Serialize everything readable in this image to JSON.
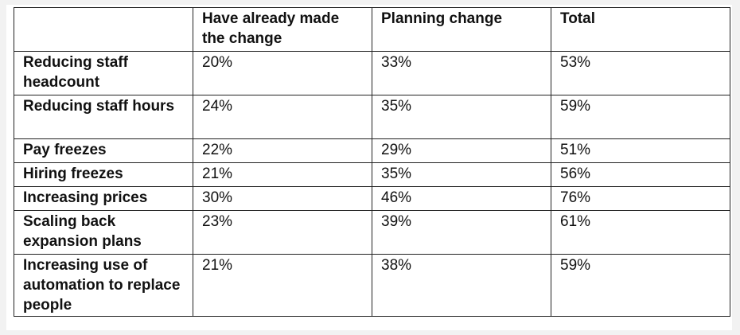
{
  "table": {
    "headers": [
      "",
      "Have already made the change",
      "Planning change",
      "Total"
    ],
    "rows": [
      {
        "label": "Reducing staff headcount",
        "made": "20%",
        "planning": "33%",
        "total": "53%"
      },
      {
        "label": "Reducing staff hours",
        "made": "24%",
        "planning": "35%",
        "total": "59%"
      },
      {
        "label": "Pay freezes",
        "made": "22%",
        "planning": "29%",
        "total": "51%"
      },
      {
        "label": "Hiring freezes",
        "made": "21%",
        "planning": "35%",
        "total": "56%"
      },
      {
        "label": "Increasing prices",
        "made": "30%",
        "planning": "46%",
        "total": "76%"
      },
      {
        "label": "Scaling back expansion plans",
        "made": "23%",
        "planning": "39%",
        "total": "61%"
      },
      {
        "label": "Increasing use of automation to replace people",
        "made": "21%",
        "planning": "38%",
        "total": "59%"
      }
    ]
  }
}
